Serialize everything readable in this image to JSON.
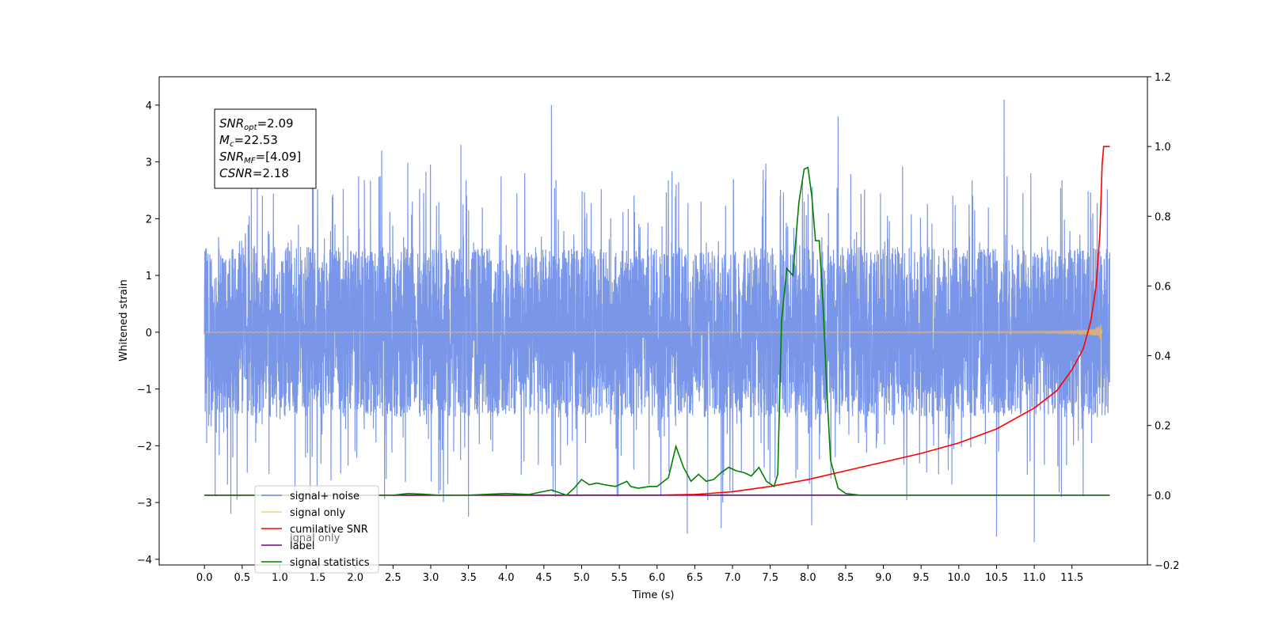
{
  "chart_data": {
    "type": "line",
    "title": "",
    "xlabel": "Time (s)",
    "ylabel": "Whitened strain",
    "xlim": [
      -0.6,
      12.5
    ],
    "ylim": [
      -4.1,
      4.5
    ],
    "y2lim": [
      -0.2,
      1.2
    ],
    "grid": false,
    "legend_position": "lower-left",
    "x_ticks": [
      "0.0",
      "0.5",
      "1.0",
      "1.5",
      "2.0",
      "2.5",
      "3.0",
      "3.5",
      "4.0",
      "4.5",
      "5.0",
      "5.5",
      "6.0",
      "6.5",
      "7.0",
      "7.5",
      "8.0",
      "8.5",
      "9.0",
      "9.5",
      "10.0",
      "10.5",
      "11.0",
      "11.5"
    ],
    "y_ticks": [
      "4",
      "3",
      "2",
      "1",
      "0",
      "−1",
      "−2",
      "−3",
      "−4"
    ],
    "y2_ticks": [
      "1.2",
      "1.0",
      "0.8",
      "0.6",
      "0.4",
      "0.2",
      "0.0",
      "−0.2"
    ],
    "series": [
      {
        "name": "signal+ noise",
        "axis": "left",
        "color": "#6a8be6",
        "style": "noise",
        "x_range": [
          0.0,
          12.0
        ],
        "typical_band": [
          -1.5,
          1.5
        ],
        "extremes": [
          {
            "x": 0.35,
            "y": -3.2
          },
          {
            "x": 0.7,
            "y": 2.7
          },
          {
            "x": 1.2,
            "y": -2.8
          },
          {
            "x": 2.35,
            "y": 3.2
          },
          {
            "x": 3.4,
            "y": 3.3
          },
          {
            "x": 3.5,
            "y": -3.25
          },
          {
            "x": 4.6,
            "y": 4.0
          },
          {
            "x": 6.4,
            "y": -3.55
          },
          {
            "x": 6.85,
            "y": -3.45
          },
          {
            "x": 7.95,
            "y": 2.3
          },
          {
            "x": 8.05,
            "y": -3.4
          },
          {
            "x": 8.4,
            "y": 3.8
          },
          {
            "x": 10.5,
            "y": -3.6
          },
          {
            "x": 10.6,
            "y": 4.1
          },
          {
            "x": 11.0,
            "y": -3.7
          }
        ]
      },
      {
        "name": "signal only",
        "axis": "left",
        "color": "#f5b65c",
        "style": "chirp",
        "x_range": [
          0.0,
          11.9
        ],
        "peak_amplitude": 0.45
      },
      {
        "name": "cumilative SNR",
        "axis": "right",
        "color": "#ff0000",
        "x": [
          0.0,
          6.0,
          6.5,
          7.0,
          7.5,
          8.0,
          8.5,
          9.0,
          9.5,
          10.0,
          10.5,
          11.0,
          11.3,
          11.5,
          11.65,
          11.75,
          11.82,
          11.87,
          11.9,
          11.92,
          12.0
        ],
        "values": [
          0.0,
          0.0,
          0.002,
          0.01,
          0.025,
          0.045,
          0.07,
          0.095,
          0.12,
          0.15,
          0.19,
          0.25,
          0.3,
          0.36,
          0.42,
          0.5,
          0.6,
          0.75,
          0.95,
          1.0,
          1.0
        ]
      },
      {
        "name": "label",
        "axis": "right",
        "color": "#6b0a7a",
        "x": [
          0.0,
          12.0
        ],
        "values": [
          0.0,
          0.0
        ]
      },
      {
        "name": "signal statistics",
        "axis": "right",
        "color": "#008000",
        "x": [
          0.0,
          2.5,
          2.7,
          2.9,
          3.1,
          3.5,
          4.0,
          4.3,
          4.6,
          4.8,
          4.9,
          5.0,
          5.1,
          5.2,
          5.3,
          5.45,
          5.6,
          5.65,
          5.75,
          5.9,
          6.0,
          6.15,
          6.25,
          6.35,
          6.45,
          6.55,
          6.65,
          6.75,
          6.85,
          6.95,
          7.05,
          7.15,
          7.25,
          7.35,
          7.45,
          7.55,
          7.6,
          7.65,
          7.72,
          7.8,
          7.88,
          7.95,
          8.0,
          8.05,
          8.1,
          8.15,
          8.2,
          8.25,
          8.3,
          8.4,
          8.5,
          8.7,
          12.0
        ],
        "values": [
          0.0,
          0.0,
          0.005,
          0.003,
          0.0,
          0.0,
          0.005,
          0.002,
          0.015,
          0.0,
          0.02,
          0.045,
          0.03,
          0.035,
          0.03,
          0.025,
          0.04,
          0.025,
          0.02,
          0.025,
          0.025,
          0.05,
          0.14,
          0.08,
          0.04,
          0.06,
          0.04,
          0.045,
          0.065,
          0.08,
          0.07,
          0.065,
          0.055,
          0.08,
          0.04,
          0.025,
          0.06,
          0.5,
          0.65,
          0.63,
          0.84,
          0.935,
          0.94,
          0.86,
          0.73,
          0.73,
          0.55,
          0.3,
          0.1,
          0.02,
          0.005,
          0.0,
          0.0
        ]
      }
    ],
    "legend_entries": [
      "signal+ noise",
      "signal only",
      "cumilative SNR",
      "label",
      "signal statistics"
    ],
    "legend_ghost_text": [
      "ignal only"
    ],
    "annotation_box": {
      "lines": [
        {
          "main": "SNR",
          "sub": "opt",
          "rest": "=2.09"
        },
        {
          "main": "M",
          "sub": "c",
          "rest": "=22.53"
        },
        {
          "main": "SNR",
          "sub": "MF",
          "rest": "=[4.09]"
        },
        {
          "main": "CSNR",
          "sub": "",
          "rest": "=2.18"
        }
      ]
    }
  }
}
